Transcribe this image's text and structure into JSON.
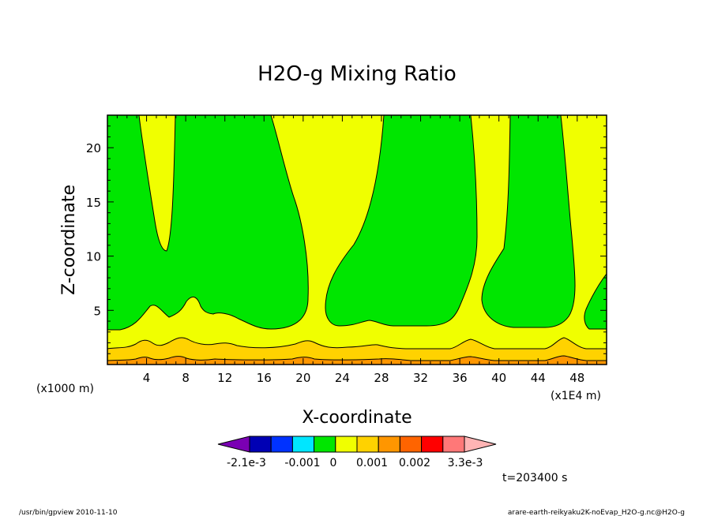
{
  "chart_data": {
    "type": "contour",
    "title": "H2O-g Mixing Ratio",
    "xlabel": "X-coordinate",
    "ylabel": "Z-coordinate",
    "x_unit_left": "(x1000 m)",
    "x_unit_right": "(x1E4 m)",
    "xlim": [
      0,
      51
    ],
    "ylim": [
      0,
      23
    ],
    "x_ticks": [
      4,
      8,
      12,
      16,
      20,
      24,
      28,
      32,
      36,
      40,
      44,
      48
    ],
    "y_ticks": [
      5,
      10,
      15,
      20
    ],
    "colorbar": {
      "labels": [
        "-2.1e-3",
        "-0.001",
        "0",
        "0.001",
        "0.002",
        "3.3e-3"
      ],
      "colors": [
        "#7a00b4",
        "#0000b4",
        "#0032ff",
        "#00e6ff",
        "#00e600",
        "#f0ff00",
        "#ffd200",
        "#ff9600",
        "#ff6400",
        "#ff0000",
        "#ff7878",
        "#ffb4b4"
      ]
    },
    "fill_colors": {
      "green": "#00e600",
      "yellow": "#f0ff00",
      "gold": "#ffd200",
      "orange": "#ff9600"
    }
  },
  "time_label": "t=203400 s",
  "footer_left": "/usr/bin/gpview   2010-11-10",
  "footer_right": "arare-earth-reikyaku2K-noEvap_H2O-g.nc@H2O-g"
}
